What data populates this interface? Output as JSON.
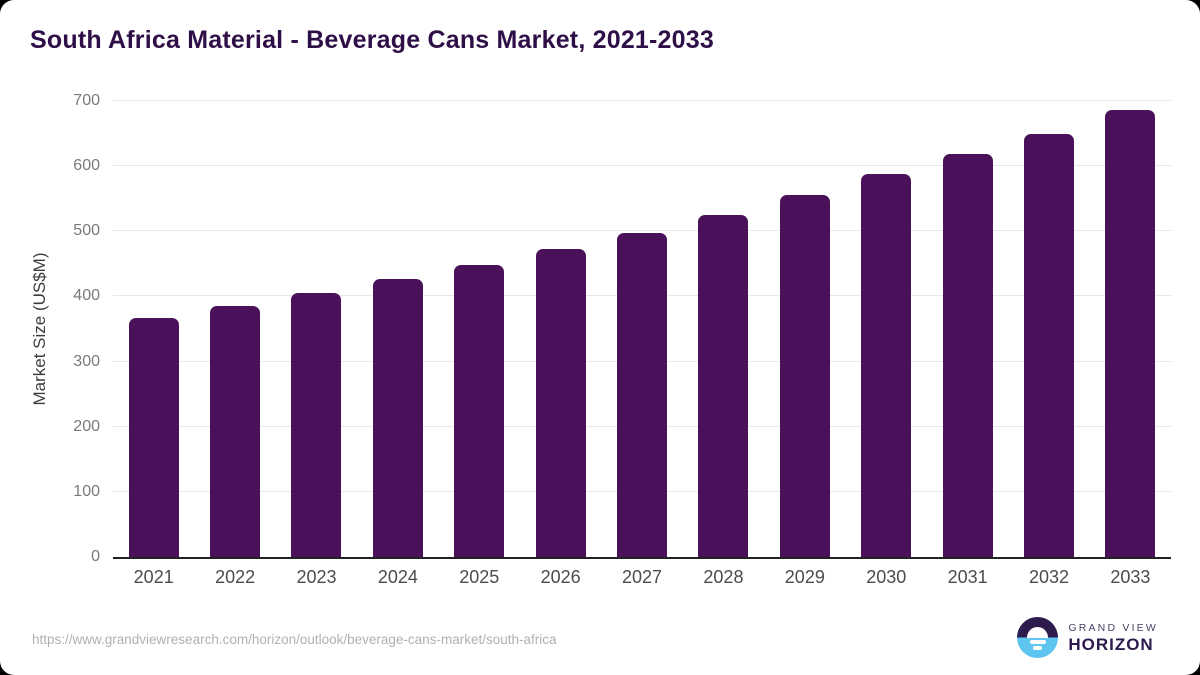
{
  "chart_data": {
    "type": "bar",
    "title": "South Africa Material - Beverage Cans Market, 2021-2033",
    "categories": [
      "2021",
      "2022",
      "2023",
      "2024",
      "2025",
      "2026",
      "2027",
      "2028",
      "2029",
      "2030",
      "2031",
      "2032",
      "2033"
    ],
    "values": [
      367,
      386,
      406,
      427,
      449,
      473,
      498,
      525,
      556,
      588,
      618,
      650,
      686
    ],
    "xlabel": "",
    "ylabel": "Market Size (US$M)",
    "ylim": [
      0,
      700
    ],
    "yticks": [
      0,
      100,
      200,
      300,
      400,
      500,
      600,
      700
    ],
    "grid": true,
    "legend_position": "none",
    "bar_color": "#4a1059"
  },
  "footer": {
    "url": "https://www.grandviewresearch.com/horizon/outlook/beverage-cans-market/south-africa",
    "logo": {
      "line1": "GRAND VIEW",
      "line2": "HORIZON"
    }
  },
  "colors": {
    "bar": "#4a1059",
    "title_text": "#2f0f47",
    "grid_line": "#e7e7e7",
    "axis_line": "#222222",
    "y_tick_text": "#7a7a7a",
    "x_tick_text": "#4c4c4c",
    "url_text": "#b1b1b1",
    "logo_navy": "#2d1b4e",
    "logo_blue": "#5ec5f0"
  }
}
